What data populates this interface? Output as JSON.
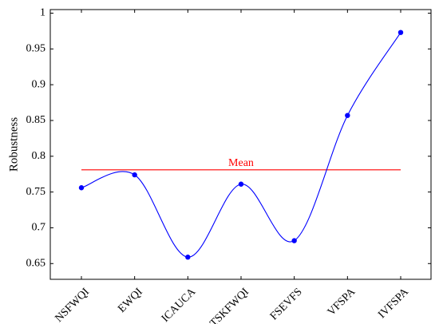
{
  "chart_data": {
    "type": "line",
    "title": "",
    "xlabel": "",
    "ylabel": "Robustness",
    "categories": [
      "NSFWQI",
      "EWQI",
      "ICAUCA",
      "TSKFWQI",
      "FSEVFS",
      "VFSPA",
      "IVFSPA"
    ],
    "series": [
      {
        "values": [
          0.756,
          0.774,
          0.659,
          0.761,
          0.682,
          0.857,
          0.973
        ],
        "color": "#0000ff",
        "smooth": true,
        "marker": "circle"
      }
    ],
    "mean": {
      "label": "Mean",
      "value": 0.781,
      "color": "#ff0000"
    },
    "ylim": [
      0.628,
      1.005
    ],
    "yticks": [
      0.65,
      0.7,
      0.75,
      0.8,
      0.85,
      0.9,
      0.95,
      1
    ],
    "ytick_labels": [
      "0.65",
      "0.7",
      "0.75",
      "0.8",
      "0.85",
      "0.9",
      "0.95",
      "1"
    ],
    "grid": false,
    "legend": "none"
  }
}
